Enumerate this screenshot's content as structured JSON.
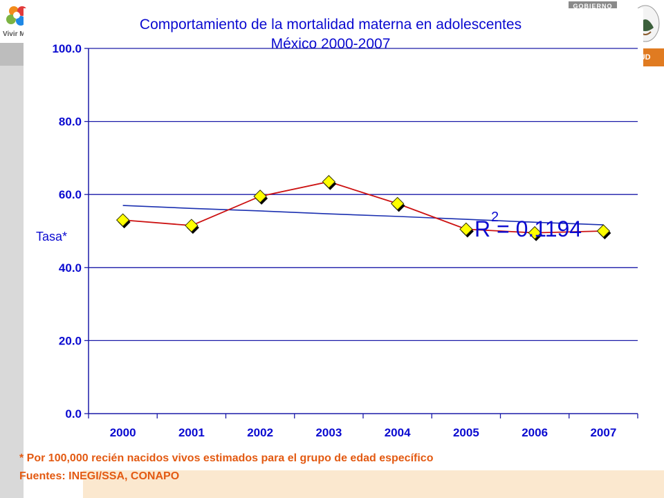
{
  "header": {
    "left_logo_text": "Vivir M",
    "right_gov_text": "GOBIERNO",
    "right_salud_text": "LUD"
  },
  "chart_data": {
    "type": "line",
    "title": [
      "Comportamiento de la mortalidad materna en adolescentes",
      "México 2000-2007"
    ],
    "xlabel": "",
    "ylabel": "Tasa*",
    "categories": [
      "2000",
      "2001",
      "2002",
      "2003",
      "2004",
      "2005",
      "2006",
      "2007"
    ],
    "ylim": [
      0,
      100
    ],
    "yticks": [
      "0.0",
      "20.0",
      "40.0",
      "60.0",
      "80.0",
      "100.0"
    ],
    "ytick_values": [
      0,
      20,
      40,
      60,
      80,
      100
    ],
    "grid": true,
    "series": [
      {
        "values": [
          53.0,
          51.5,
          59.5,
          63.5,
          57.5,
          50.5,
          49.5,
          50.0
        ],
        "color": "#cc1111",
        "marker": "diamond",
        "marker_color": "#ffff00"
      },
      {
        "type": "trendline",
        "values": [
          57.0,
          56.2,
          55.5,
          54.7,
          54.0,
          53.2,
          52.4,
          51.7
        ],
        "color": "#1a2fb0"
      }
    ],
    "annotation": {
      "base": "R",
      "sup": "2",
      "rest": " = 0.1194"
    }
  },
  "footnotes": {
    "note": "* Por 100,000 recién nacidos vivos estimados para el grupo de edad específico",
    "source": "Fuentes: INEGI/SSA, CONAPO"
  }
}
